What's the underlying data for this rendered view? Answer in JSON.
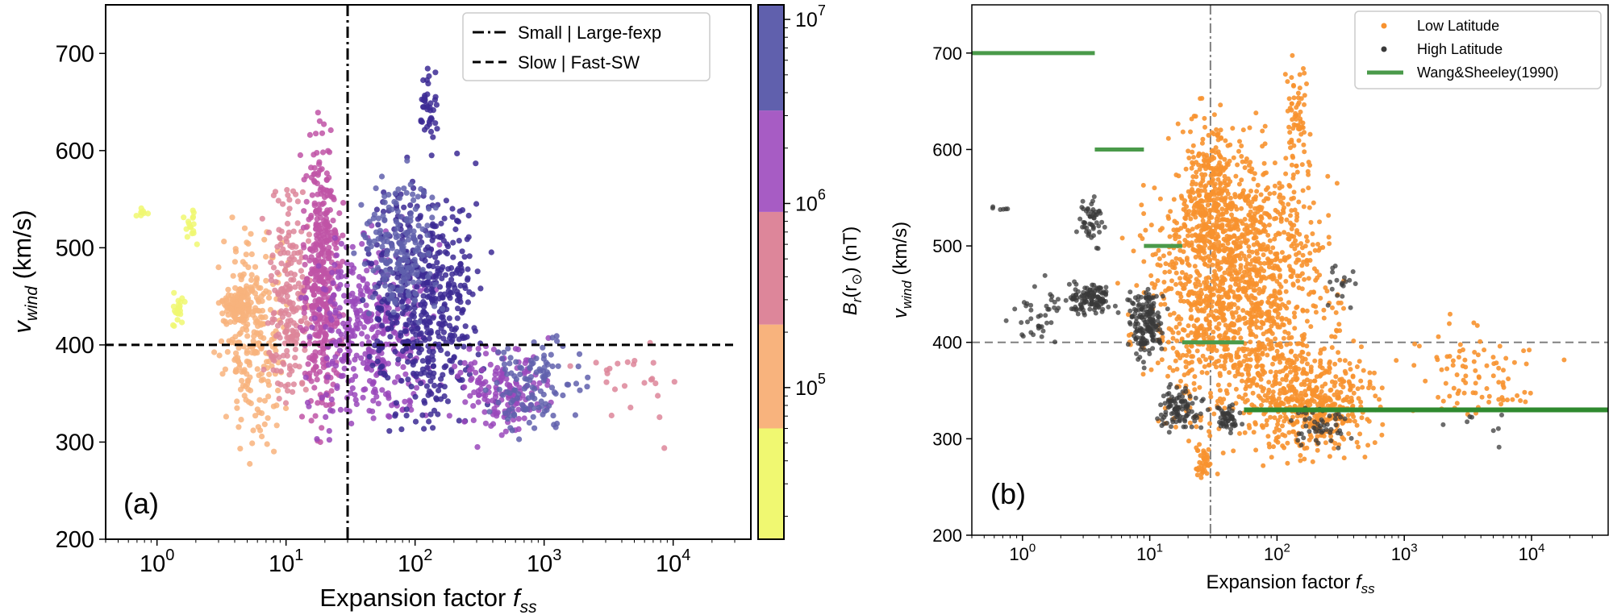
{
  "chart_data": [
    {
      "type": "scatter",
      "panel_label": "(a)",
      "xlabel": "Expansion factor",
      "xlabel_sub": "ss",
      "ylabel": "v",
      "ylabel_sub": "wind",
      "ylabel_unit": " (km/s)",
      "xscale": "log",
      "xlim": [
        0.4,
        40000
      ],
      "ylim": [
        200,
        750
      ],
      "x_ticks": [
        {
          "base": "10",
          "exp": "0",
          "value": 1
        },
        {
          "base": "10",
          "exp": "1",
          "value": 10
        },
        {
          "base": "10",
          "exp": "2",
          "value": 100
        },
        {
          "base": "10",
          "exp": "3",
          "value": 1000
        },
        {
          "base": "10",
          "exp": "4",
          "value": 10000
        }
      ],
      "y_ticks": [
        200,
        300,
        400,
        500,
        600,
        700
      ],
      "grid": false,
      "legend_position": "top-right",
      "legend": [
        {
          "label": "Small | Large-fexp",
          "style": "dashdot",
          "color": "#000000"
        },
        {
          "label": "Slow | Fast-SW",
          "style": "dashed",
          "color": "#000000"
        }
      ],
      "reference_lines": [
        {
          "orientation": "vertical",
          "x": 30,
          "style": "dashdot",
          "color": "#000000"
        },
        {
          "orientation": "horizontal",
          "y": 400,
          "style": "dashed",
          "color": "#000000"
        }
      ],
      "colorbar": {
        "label": "B",
        "label_sub": "r",
        "label_arg": "(r",
        "label_sun": "⊙",
        "label_unit": ") (nT)",
        "scale": "log",
        "range": [
          15000,
          12000000
        ],
        "ticks": [
          {
            "base": "10",
            "exp": "5",
            "value": 100000
          },
          {
            "base": "10",
            "exp": "6",
            "value": 1000000
          },
          {
            "base": "10",
            "exp": "7",
            "value": 10000000
          }
        ],
        "bands": [
          {
            "min": 15000,
            "max": 60000,
            "color": "#f0f871"
          },
          {
            "min": 60000,
            "max": 220000,
            "color": "#f8b37d"
          },
          {
            "min": 220000,
            "max": 900000,
            "color": "#dd869a"
          },
          {
            "min": 900000,
            "max": 3200000,
            "color": "#a75cc4"
          },
          {
            "min": 3200000,
            "max": 12000000,
            "color": "#6060ad"
          }
        ]
      },
      "point_clusters": [
        {
          "x_range": [
            0.55,
            1.0
          ],
          "y_range": [
            525,
            545
          ],
          "n": 8,
          "color": "#f0f871"
        },
        {
          "x_range": [
            1.1,
            2.0
          ],
          "y_range": [
            410,
            460
          ],
          "n": 22,
          "color": "#f0f871"
        },
        {
          "x_range": [
            1.5,
            2.2
          ],
          "y_range": [
            495,
            550
          ],
          "n": 16,
          "color": "#f0f871"
        },
        {
          "x_range": [
            2.5,
            12
          ],
          "y_range": [
            270,
            560
          ],
          "n": 260,
          "color": "#f8b37d"
        },
        {
          "x_range": [
            3,
            6
          ],
          "y_range": [
            415,
            460
          ],
          "n": 90,
          "color": "#f8b37d"
        },
        {
          "x_range": [
            6,
            18
          ],
          "y_range": [
            280,
            600
          ],
          "n": 200,
          "color": "#dd869a"
        },
        {
          "x_range": [
            12,
            30
          ],
          "y_range": [
            270,
            670
          ],
          "n": 420,
          "color": "#c053a6"
        },
        {
          "x_range": [
            10,
            200
          ],
          "y_range": [
            275,
            550
          ],
          "n": 380,
          "color": "#9a48bb"
        },
        {
          "x_range": [
            30,
            500
          ],
          "y_range": [
            270,
            620
          ],
          "n": 520,
          "color": "#3c2a94"
        },
        {
          "x_range": [
            100,
            160
          ],
          "y_range": [
            580,
            715
          ],
          "n": 40,
          "color": "#3c2a94"
        },
        {
          "x_range": [
            30,
            180
          ],
          "y_range": [
            400,
            600
          ],
          "n": 180,
          "color": "#6060ad"
        },
        {
          "x_range": [
            150,
            1500
          ],
          "y_range": [
            290,
            420
          ],
          "n": 160,
          "color": "#9a48bb"
        },
        {
          "x_range": [
            300,
            2500
          ],
          "y_range": [
            280,
            430
          ],
          "n": 120,
          "color": "#6060ad"
        },
        {
          "x_range": [
            1000,
            30000
          ],
          "y_range": [
            280,
            440
          ],
          "n": 24,
          "color": "#dd869a"
        }
      ]
    },
    {
      "type": "scatter",
      "panel_label": "(b)",
      "xlabel": "Expansion factor",
      "xlabel_sub": "ss",
      "ylabel": "v",
      "ylabel_sub": "wind",
      "ylabel_unit": " (km/s)",
      "xscale": "log",
      "xlim": [
        0.4,
        40000
      ],
      "ylim": [
        200,
        750
      ],
      "x_ticks": [
        {
          "base": "10",
          "exp": "0",
          "value": 1
        },
        {
          "base": "10",
          "exp": "1",
          "value": 10
        },
        {
          "base": "10",
          "exp": "2",
          "value": 100
        },
        {
          "base": "10",
          "exp": "3",
          "value": 1000
        },
        {
          "base": "10",
          "exp": "4",
          "value": 10000
        }
      ],
      "y_ticks": [
        200,
        300,
        400,
        500,
        600,
        700
      ],
      "grid": false,
      "legend_position": "top-right",
      "series": [
        {
          "name": "Low Latitude",
          "marker": "dot",
          "color": "#f7922f",
          "point_clusters": [
            {
              "x_range": [
                5,
                500
              ],
              "y_range": [
                260,
                660
              ],
              "n": 1500
            },
            {
              "x_range": [
                15,
                60
              ],
              "y_range": [
                430,
                670
              ],
              "n": 250
            },
            {
              "x_range": [
                100,
                200
              ],
              "y_range": [
                560,
                715
              ],
              "n": 60
            },
            {
              "x_range": [
                40,
                1000
              ],
              "y_range": [
                260,
                420
              ],
              "n": 450
            },
            {
              "x_range": [
                500,
                20000
              ],
              "y_range": [
                285,
                440
              ],
              "n": 90
            },
            {
              "x_range": [
                20,
                35
              ],
              "y_range": [
                250,
                300
              ],
              "n": 40
            }
          ]
        },
        {
          "name": "High Latitude",
          "marker": "dot",
          "color": "#3a3a3a",
          "point_clusters": [
            {
              "x_range": [
                0.5,
                0.9
              ],
              "y_range": [
                532,
                545
              ],
              "n": 6
            },
            {
              "x_range": [
                0.7,
                2.5
              ],
              "y_range": [
                380,
                480
              ],
              "n": 40
            },
            {
              "x_range": [
                2,
                6
              ],
              "y_range": [
                420,
                470
              ],
              "n": 120
            },
            {
              "x_range": [
                2.5,
                5
              ],
              "y_range": [
                490,
                560
              ],
              "n": 50
            },
            {
              "x_range": [
                6,
                15
              ],
              "y_range": [
                370,
                470
              ],
              "n": 170
            },
            {
              "x_range": [
                10,
                30
              ],
              "y_range": [
                300,
                360
              ],
              "n": 100
            },
            {
              "x_range": [
                30,
                60
              ],
              "y_range": [
                300,
                340
              ],
              "n": 50
            },
            {
              "x_range": [
                100,
                500
              ],
              "y_range": [
                280,
                350
              ],
              "n": 50
            },
            {
              "x_range": [
                200,
                500
              ],
              "y_range": [
                420,
                500
              ],
              "n": 18
            },
            {
              "x_range": [
                1000,
                15000
              ],
              "y_range": [
                285,
                350
              ],
              "n": 8
            }
          ]
        }
      ],
      "wang_sheeley": {
        "name": "Wang&Sheeley(1990)",
        "color": "#4a9a4a",
        "segments": [
          {
            "x0": 0.4,
            "x1": 3.7,
            "y": 700
          },
          {
            "x0": 3.7,
            "x1": 9,
            "y": 600
          },
          {
            "x0": 9,
            "x1": 18,
            "y": 500
          },
          {
            "x0": 18,
            "x1": 55,
            "y": 400
          },
          {
            "x0": 55,
            "x1": 40000,
            "y": 330
          }
        ]
      },
      "reference_lines": [
        {
          "orientation": "vertical",
          "x": 30,
          "style": "dashdot",
          "color": "#808080"
        },
        {
          "orientation": "horizontal",
          "y": 400,
          "style": "dashed",
          "color": "#808080"
        }
      ]
    }
  ]
}
